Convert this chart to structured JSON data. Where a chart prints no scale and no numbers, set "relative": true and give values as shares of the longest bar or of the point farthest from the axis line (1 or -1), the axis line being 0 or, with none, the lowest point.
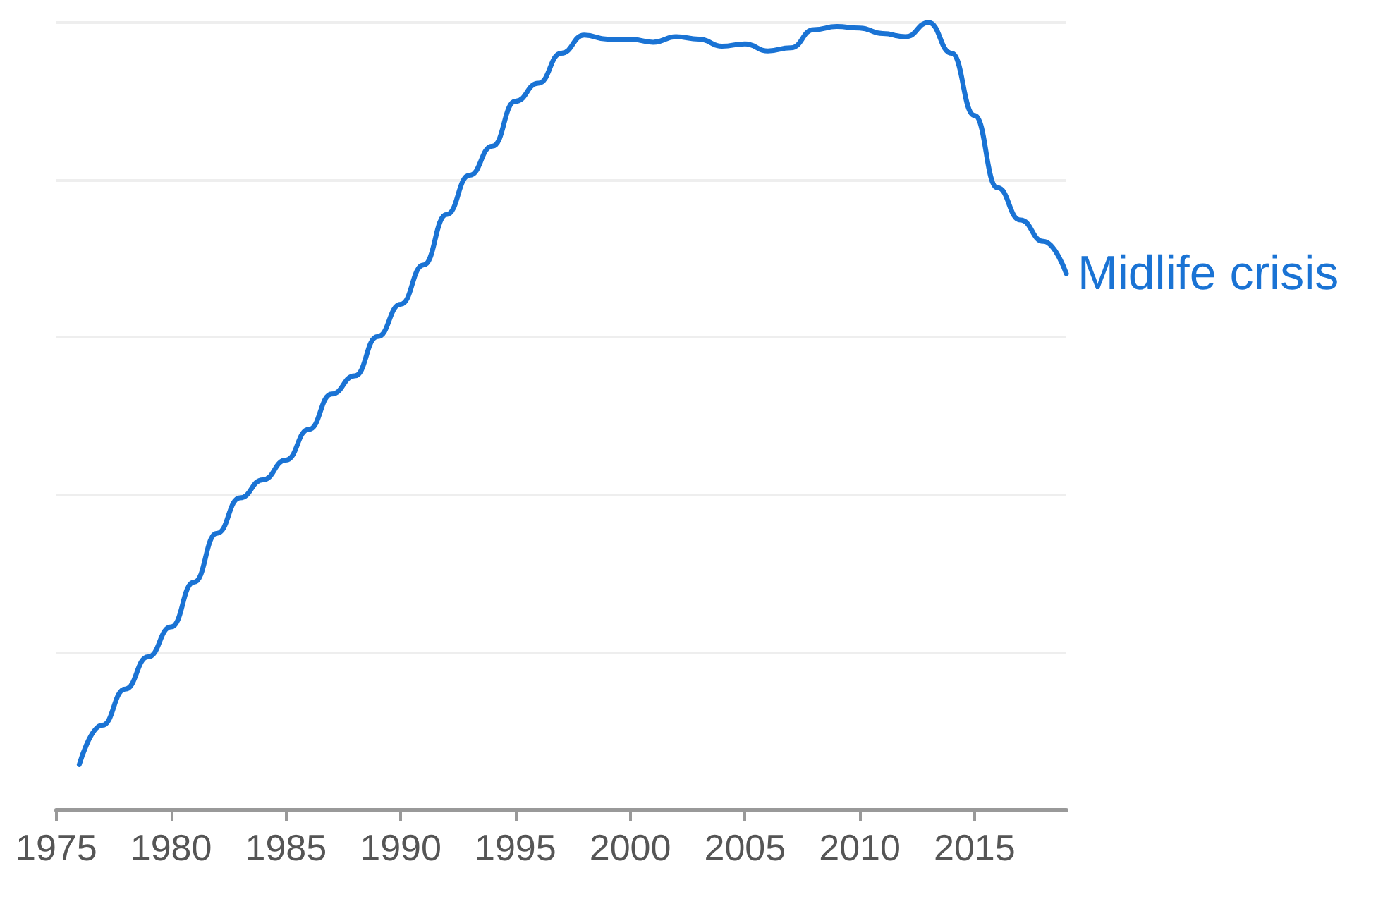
{
  "chart_data": {
    "type": "line",
    "relative": true,
    "grid": "y",
    "legend": false,
    "marker": "none",
    "line_style": "solid",
    "xlim": [
      1975,
      2019
    ],
    "xticks": [
      1975,
      1980,
      1985,
      1990,
      1995,
      2000,
      2005,
      2010,
      2015
    ],
    "x": [
      1976,
      1977,
      1978,
      1979,
      1980,
      1981,
      1982,
      1983,
      1984,
      1985,
      1986,
      1987,
      1988,
      1989,
      1990,
      1991,
      1992,
      1993,
      1994,
      1995,
      1996,
      1997,
      1998,
      1999,
      2000,
      2001,
      2002,
      2003,
      2004,
      2005,
      2006,
      2007,
      2008,
      2009,
      2010,
      2011,
      2012,
      2013,
      2014,
      2015,
      2016,
      2017,
      2018,
      2019
    ],
    "series": [
      {
        "name": "Midlife crisis",
        "color": "#1a73d4",
        "values": [
          0.057,
          0.107,
          0.153,
          0.194,
          0.232,
          0.289,
          0.351,
          0.396,
          0.419,
          0.444,
          0.483,
          0.528,
          0.551,
          0.601,
          0.642,
          0.692,
          0.756,
          0.806,
          0.843,
          0.9,
          0.923,
          0.961,
          0.984,
          0.979,
          0.979,
          0.975,
          0.982,
          0.979,
          0.97,
          0.973,
          0.964,
          0.968,
          0.991,
          0.995,
          0.993,
          0.986,
          0.982,
          1.0,
          0.961,
          0.882,
          0.79,
          0.749,
          0.722,
          0.681
        ]
      }
    ]
  }
}
